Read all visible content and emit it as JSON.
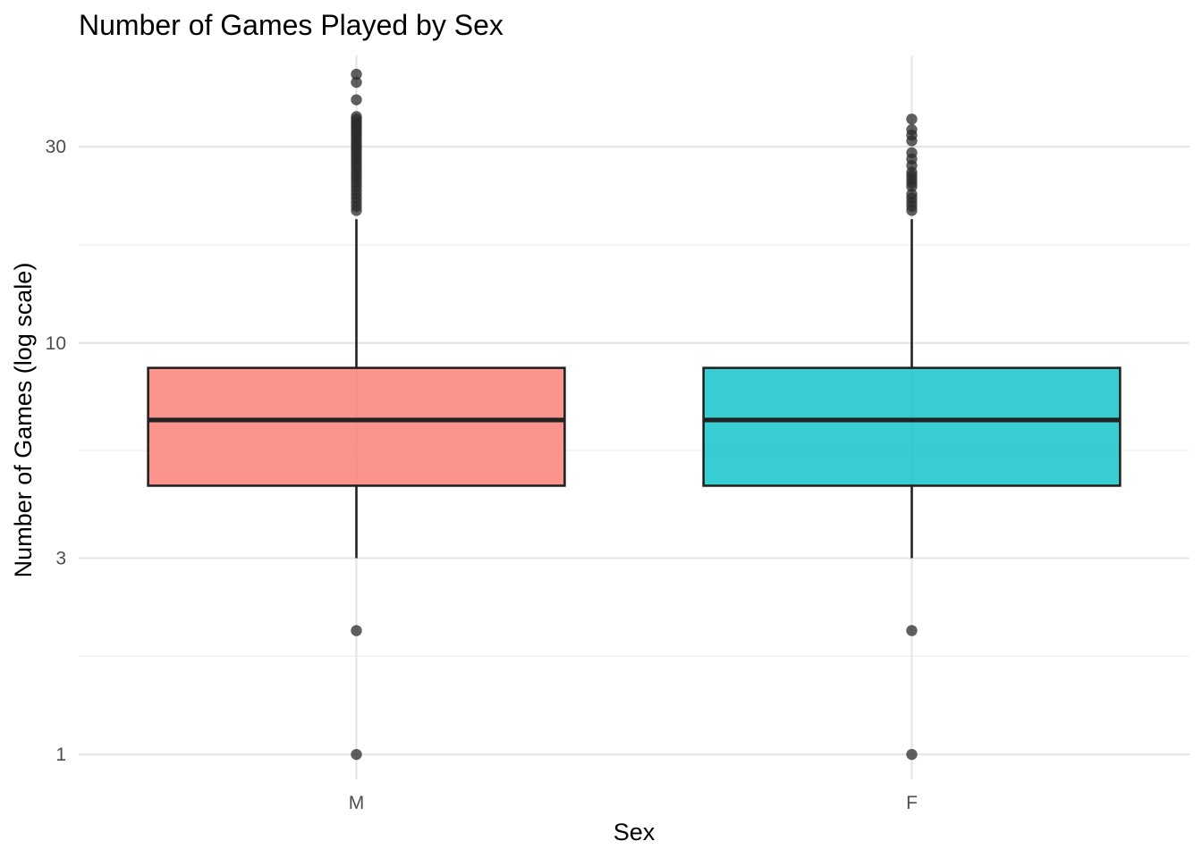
{
  "chart_data": {
    "type": "box",
    "title": "Number of Games Played by Sex",
    "xlabel": "Sex",
    "ylabel": "Number of Games (log scale)",
    "y_scale": "log10",
    "ylim": [
      0.87,
      50
    ],
    "y_ticks": [
      1,
      3,
      10,
      30
    ],
    "y_minor_ticks": [
      1.732,
      5.477,
      17.32
    ],
    "grid": true,
    "legend": "none",
    "categories": [
      "M",
      "F"
    ],
    "series": [
      {
        "category": "M",
        "color": "#F8766D",
        "q1": 4.5,
        "median": 6.5,
        "q3": 8.7,
        "whisker_low": 3,
        "whisker_high": 20,
        "outliers": [
          1,
          2,
          21,
          21.5,
          22,
          22.5,
          23,
          23.5,
          24,
          24.5,
          25,
          25.5,
          26,
          26.5,
          27,
          27.5,
          28,
          28.5,
          29,
          29.5,
          30,
          30.5,
          31,
          31.5,
          32,
          32.5,
          33,
          33.5,
          34,
          34.5,
          35,
          35.5,
          39,
          43,
          45
        ]
      },
      {
        "category": "F",
        "color": "#00BFC4",
        "q1": 4.5,
        "median": 6.5,
        "q3": 8.7,
        "whisker_low": 3,
        "whisker_high": 20,
        "outliers": [
          1,
          2,
          21,
          21.5,
          22,
          22.5,
          23,
          24,
          24.5,
          25,
          25.5,
          26,
          27,
          28,
          29,
          31,
          32,
          33,
          35
        ]
      }
    ]
  }
}
